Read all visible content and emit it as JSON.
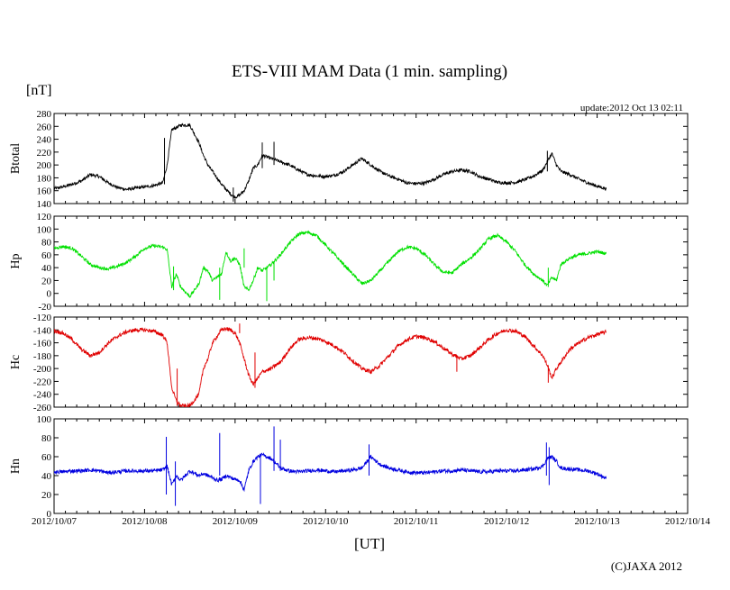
{
  "chart_data": {
    "type": "line",
    "title": "ETS-VIII MAM Data (1 min. sampling)",
    "unit_label": "[nT]",
    "update_label": "update:2012 Oct 13 02:11",
    "xlabel": "[UT]",
    "credit": "(C)JAXA 2012",
    "x_unit": "days since 2012/10/07 00:00 UT",
    "xlim": [
      0,
      7
    ],
    "x_ticks": [
      {
        "value": 0,
        "label": "2012/10/07"
      },
      {
        "value": 1,
        "label": "2012/10/08"
      },
      {
        "value": 2,
        "label": "2012/10/09"
      },
      {
        "value": 3,
        "label": "2012/10/10"
      },
      {
        "value": 4,
        "label": "2012/10/11"
      },
      {
        "value": 5,
        "label": "2012/10/12"
      },
      {
        "value": 6,
        "label": "2012/10/13"
      },
      {
        "value": 7,
        "label": "2012/10/14"
      }
    ],
    "panels": [
      {
        "name": "Btotal",
        "ylabel": "Btotal",
        "color": "#000000",
        "ylim": [
          140,
          280
        ],
        "yticks": [
          {
            "v": 140,
            "l": "140"
          },
          {
            "v": 160,
            "l": "160"
          },
          {
            "v": 180,
            "l": "180"
          },
          {
            "v": 200,
            "l": "200"
          },
          {
            "v": 220,
            "l": "220"
          },
          {
            "v": 240,
            "l": "240"
          },
          {
            "v": 260,
            "l": "260"
          },
          {
            "v": 280,
            "l": "280"
          }
        ],
        "noise": 2.5,
        "series": {
          "x": [
            0.0,
            0.1,
            0.2,
            0.3,
            0.4,
            0.5,
            0.6,
            0.7,
            0.8,
            0.9,
            1.0,
            1.1,
            1.2,
            1.25,
            1.3,
            1.35,
            1.4,
            1.5,
            1.6,
            1.65,
            1.7,
            1.75,
            1.8,
            1.85,
            1.9,
            1.95,
            2.0,
            2.05,
            2.1,
            2.15,
            2.2,
            2.25,
            2.3,
            2.4,
            2.5,
            2.6,
            2.7,
            2.8,
            2.9,
            3.0,
            3.1,
            3.2,
            3.3,
            3.4,
            3.5,
            3.6,
            3.7,
            3.8,
            3.9,
            4.0,
            4.1,
            4.2,
            4.3,
            4.4,
            4.5,
            4.6,
            4.7,
            4.8,
            4.9,
            5.0,
            5.1,
            5.2,
            5.3,
            5.4,
            5.45,
            5.5,
            5.55,
            5.6,
            5.7,
            5.8,
            5.9,
            6.0,
            6.1
          ],
          "y": [
            163,
            166,
            170,
            175,
            185,
            182,
            172,
            165,
            162,
            164,
            166,
            168,
            172,
            200,
            255,
            258,
            262,
            262,
            235,
            215,
            200,
            190,
            180,
            170,
            162,
            155,
            150,
            153,
            160,
            175,
            195,
            200,
            215,
            210,
            205,
            200,
            192,
            185,
            183,
            182,
            184,
            190,
            200,
            210,
            200,
            190,
            183,
            178,
            172,
            171,
            172,
            178,
            185,
            190,
            192,
            190,
            182,
            178,
            173,
            172,
            173,
            177,
            183,
            192,
            205,
            218,
            200,
            190,
            185,
            178,
            172,
            167,
            163
          ]
        }
      },
      {
        "name": "Hp",
        "ylabel": "Hp",
        "color": "#00e000",
        "ylim": [
          -20,
          120
        ],
        "yticks": [
          {
            "v": -20,
            "l": "-20"
          },
          {
            "v": 0,
            "l": "0"
          },
          {
            "v": 20,
            "l": "20"
          },
          {
            "v": 40,
            "l": "40"
          },
          {
            "v": 60,
            "l": "60"
          },
          {
            "v": 80,
            "l": "80"
          },
          {
            "v": 100,
            "l": "100"
          },
          {
            "v": 120,
            "l": "120"
          }
        ],
        "noise": 2.5,
        "series": {
          "x": [
            0.0,
            0.1,
            0.2,
            0.3,
            0.4,
            0.5,
            0.6,
            0.7,
            0.8,
            0.9,
            1.0,
            1.1,
            1.2,
            1.25,
            1.3,
            1.35,
            1.4,
            1.5,
            1.6,
            1.65,
            1.7,
            1.75,
            1.8,
            1.85,
            1.9,
            1.95,
            2.0,
            2.05,
            2.1,
            2.15,
            2.2,
            2.25,
            2.3,
            2.4,
            2.5,
            2.6,
            2.7,
            2.8,
            2.9,
            3.0,
            3.1,
            3.2,
            3.3,
            3.4,
            3.5,
            3.6,
            3.7,
            3.8,
            3.9,
            4.0,
            4.1,
            4.2,
            4.3,
            4.4,
            4.5,
            4.6,
            4.7,
            4.8,
            4.9,
            5.0,
            5.1,
            5.2,
            5.3,
            5.4,
            5.45,
            5.5,
            5.55,
            5.6,
            5.7,
            5.8,
            5.9,
            6.0,
            6.1
          ],
          "y": [
            70,
            73,
            70,
            58,
            45,
            40,
            38,
            42,
            48,
            58,
            70,
            74,
            72,
            68,
            10,
            30,
            10,
            -5,
            15,
            40,
            35,
            20,
            25,
            30,
            65,
            50,
            55,
            45,
            10,
            5,
            20,
            40,
            35,
            45,
            60,
            78,
            92,
            95,
            90,
            75,
            60,
            45,
            30,
            15,
            20,
            35,
            50,
            65,
            72,
            70,
            60,
            45,
            33,
            32,
            45,
            55,
            68,
            85,
            90,
            80,
            65,
            45,
            30,
            20,
            12,
            25,
            20,
            45,
            55,
            60,
            62,
            65,
            62
          ]
        }
      },
      {
        "name": "Hc",
        "ylabel": "Hc",
        "color": "#e00000",
        "ylim": [
          -260,
          -120
        ],
        "yticks": [
          {
            "v": -260,
            "l": "-260"
          },
          {
            "v": -240,
            "l": "-240"
          },
          {
            "v": -220,
            "l": "-220"
          },
          {
            "v": -200,
            "l": "-200"
          },
          {
            "v": -180,
            "l": "-180"
          },
          {
            "v": -160,
            "l": "-160"
          },
          {
            "v": -140,
            "l": "-140"
          },
          {
            "v": -120,
            "l": "-120"
          }
        ],
        "noise": 3,
        "series": {
          "x": [
            0.0,
            0.1,
            0.2,
            0.3,
            0.4,
            0.5,
            0.6,
            0.7,
            0.8,
            0.9,
            1.0,
            1.1,
            1.2,
            1.25,
            1.3,
            1.35,
            1.4,
            1.5,
            1.6,
            1.65,
            1.7,
            1.75,
            1.8,
            1.85,
            1.9,
            1.95,
            2.0,
            2.05,
            2.1,
            2.15,
            2.2,
            2.25,
            2.3,
            2.4,
            2.5,
            2.6,
            2.7,
            2.8,
            2.9,
            3.0,
            3.1,
            3.2,
            3.3,
            3.4,
            3.5,
            3.6,
            3.7,
            3.8,
            3.9,
            4.0,
            4.1,
            4.2,
            4.3,
            4.4,
            4.5,
            4.6,
            4.7,
            4.8,
            4.9,
            5.0,
            5.1,
            5.2,
            5.3,
            5.4,
            5.45,
            5.5,
            5.55,
            5.6,
            5.7,
            5.8,
            5.9,
            6.0,
            6.1
          ],
          "y": [
            -141,
            -145,
            -155,
            -170,
            -180,
            -175,
            -160,
            -150,
            -143,
            -140,
            -140,
            -142,
            -148,
            -160,
            -230,
            -250,
            -258,
            -258,
            -240,
            -200,
            -185,
            -160,
            -150,
            -140,
            -138,
            -140,
            -145,
            -160,
            -185,
            -210,
            -225,
            -215,
            -205,
            -200,
            -190,
            -170,
            -155,
            -152,
            -153,
            -158,
            -165,
            -175,
            -188,
            -200,
            -205,
            -195,
            -180,
            -165,
            -155,
            -150,
            -152,
            -158,
            -168,
            -178,
            -185,
            -180,
            -168,
            -155,
            -145,
            -140,
            -142,
            -150,
            -165,
            -180,
            -195,
            -215,
            -200,
            -190,
            -170,
            -160,
            -152,
            -147,
            -143
          ]
        }
      },
      {
        "name": "Hn",
        "ylabel": "Hn",
        "color": "#0000e0",
        "ylim": [
          0,
          100
        ],
        "yticks": [
          {
            "v": 0,
            "l": "0"
          },
          {
            "v": 20,
            "l": "20"
          },
          {
            "v": 40,
            "l": "40"
          },
          {
            "v": 60,
            "l": "60"
          },
          {
            "v": 80,
            "l": "80"
          },
          {
            "v": 100,
            "l": "100"
          }
        ],
        "noise": 2,
        "series": {
          "x": [
            0.0,
            0.1,
            0.2,
            0.3,
            0.4,
            0.5,
            0.6,
            0.7,
            0.8,
            0.9,
            1.0,
            1.1,
            1.2,
            1.25,
            1.3,
            1.35,
            1.4,
            1.5,
            1.6,
            1.65,
            1.7,
            1.75,
            1.8,
            1.85,
            1.9,
            1.95,
            2.0,
            2.05,
            2.1,
            2.15,
            2.2,
            2.25,
            2.3,
            2.4,
            2.5,
            2.6,
            2.7,
            2.8,
            2.9,
            3.0,
            3.1,
            3.2,
            3.3,
            3.4,
            3.5,
            3.6,
            3.7,
            3.8,
            3.9,
            4.0,
            4.1,
            4.2,
            4.3,
            4.4,
            4.5,
            4.6,
            4.7,
            4.8,
            4.9,
            5.0,
            5.1,
            5.2,
            5.3,
            5.4,
            5.45,
            5.5,
            5.55,
            5.6,
            5.7,
            5.8,
            5.9,
            6.0,
            6.1
          ],
          "y": [
            44,
            44,
            45,
            45,
            46,
            45,
            43,
            44,
            45,
            45,
            45,
            45,
            46,
            50,
            30,
            40,
            35,
            45,
            40,
            42,
            40,
            38,
            35,
            36,
            40,
            38,
            36,
            35,
            25,
            45,
            55,
            60,
            62,
            58,
            48,
            45,
            44,
            45,
            46,
            45,
            44,
            45,
            46,
            48,
            60,
            52,
            48,
            46,
            44,
            43,
            43,
            44,
            45,
            45,
            46,
            45,
            44,
            44,
            45,
            45,
            45,
            46,
            47,
            50,
            58,
            60,
            55,
            48,
            47,
            46,
            45,
            42,
            37
          ]
        }
      }
    ],
    "spikes": [
      {
        "panel": 0,
        "x": 1.22,
        "lo": 170,
        "hi": 242
      },
      {
        "panel": 0,
        "x": 1.98,
        "lo": 143,
        "hi": 165
      },
      {
        "panel": 0,
        "x": 2.3,
        "lo": 195,
        "hi": 235
      },
      {
        "panel": 0,
        "x": 2.43,
        "lo": 200,
        "hi": 236
      },
      {
        "panel": 0,
        "x": 5.45,
        "lo": 190,
        "hi": 222
      },
      {
        "panel": 1,
        "x": 1.32,
        "lo": 5,
        "hi": 42
      },
      {
        "panel": 1,
        "x": 1.83,
        "lo": -10,
        "hi": 40
      },
      {
        "panel": 1,
        "x": 2.1,
        "lo": 40,
        "hi": 70
      },
      {
        "panel": 1,
        "x": 2.35,
        "lo": -12,
        "hi": 40
      },
      {
        "panel": 1,
        "x": 2.43,
        "lo": 20,
        "hi": 50
      },
      {
        "panel": 1,
        "x": 5.46,
        "lo": 10,
        "hi": 40
      },
      {
        "panel": 2,
        "x": 1.36,
        "lo": -258,
        "hi": -200
      },
      {
        "panel": 2,
        "x": 2.22,
        "lo": -230,
        "hi": -175
      },
      {
        "panel": 2,
        "x": 2.05,
        "lo": -145,
        "hi": -130
      },
      {
        "panel": 2,
        "x": 4.45,
        "lo": -205,
        "hi": -180
      },
      {
        "panel": 2,
        "x": 5.46,
        "lo": -222,
        "hi": -195
      },
      {
        "panel": 3,
        "x": 1.24,
        "lo": 20,
        "hi": 81
      },
      {
        "panel": 3,
        "x": 1.34,
        "lo": 8,
        "hi": 55
      },
      {
        "panel": 3,
        "x": 1.83,
        "lo": 40,
        "hi": 85
      },
      {
        "panel": 3,
        "x": 2.28,
        "lo": 10,
        "hi": 60
      },
      {
        "panel": 3,
        "x": 2.43,
        "lo": 45,
        "hi": 92
      },
      {
        "panel": 3,
        "x": 2.5,
        "lo": 45,
        "hi": 78
      },
      {
        "panel": 3,
        "x": 3.48,
        "lo": 40,
        "hi": 73
      },
      {
        "panel": 3,
        "x": 5.44,
        "lo": 40,
        "hi": 75
      },
      {
        "panel": 3,
        "x": 5.47,
        "lo": 30,
        "hi": 70
      }
    ]
  }
}
